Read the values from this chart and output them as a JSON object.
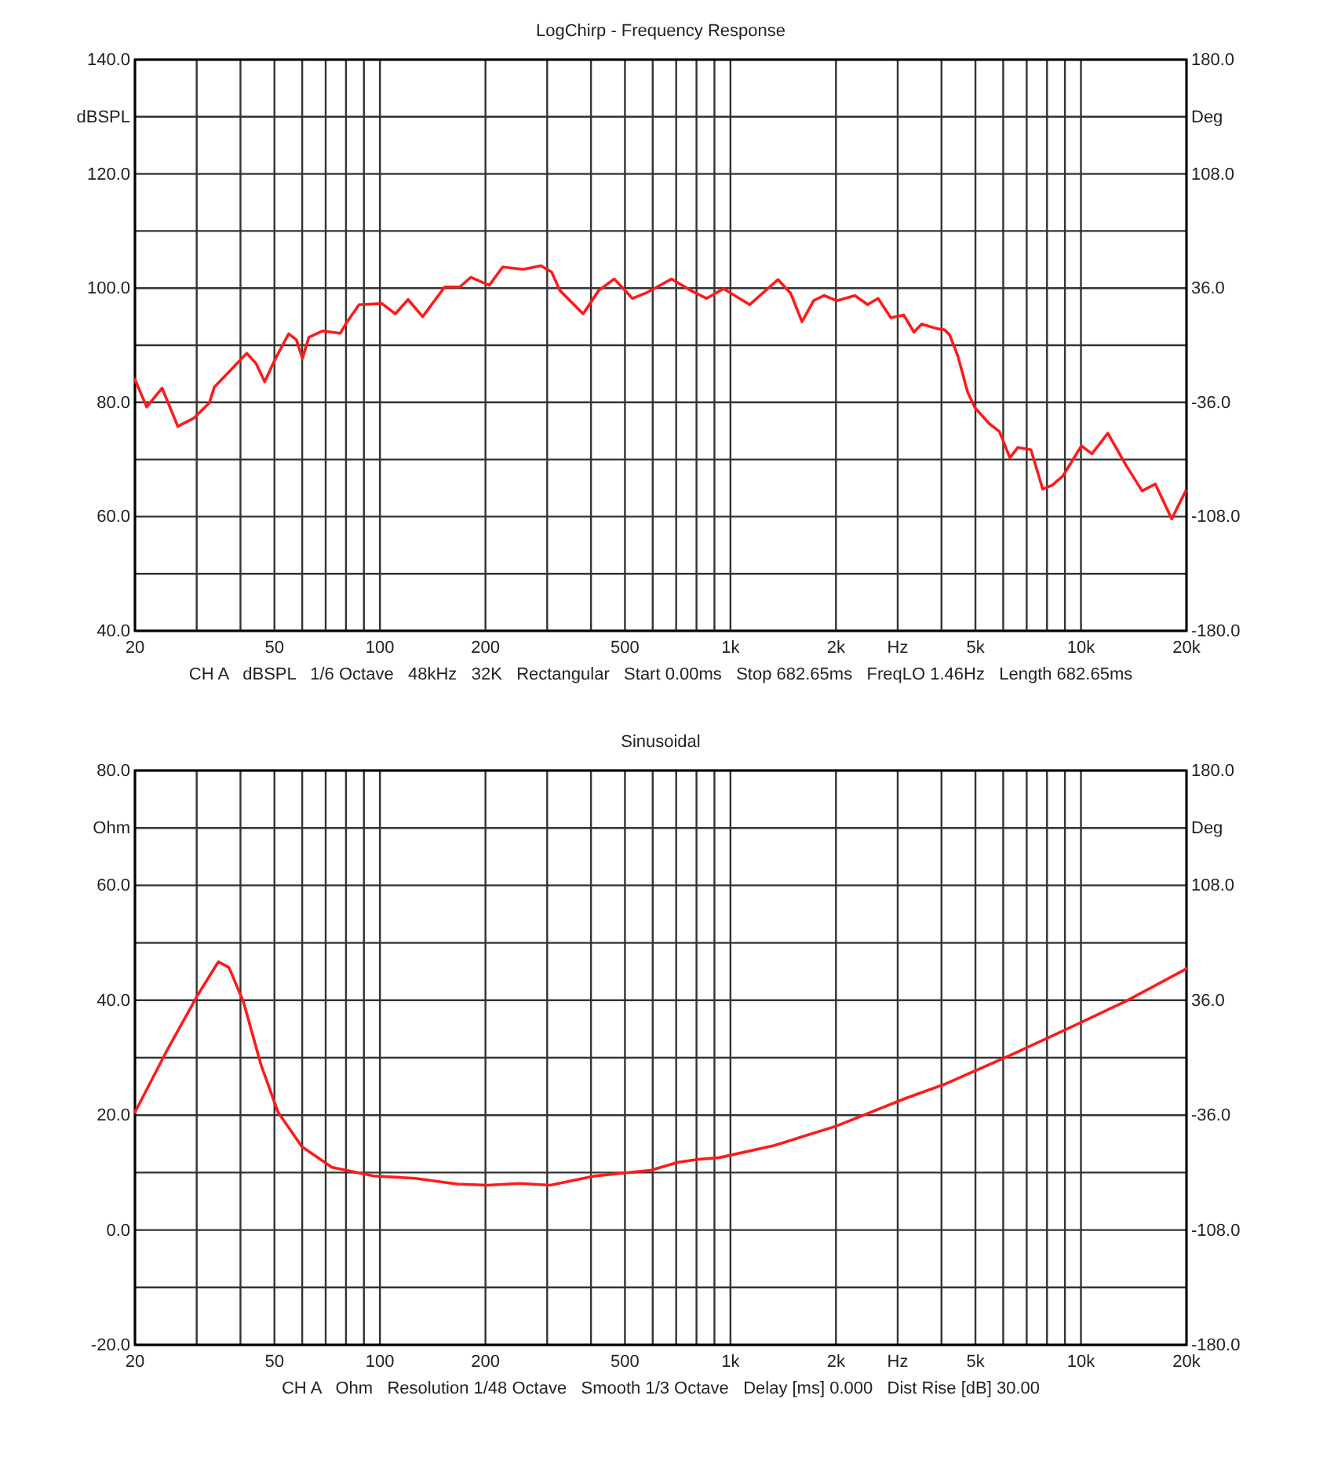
{
  "chart_data": [
    {
      "type": "line",
      "title": "LogChirp - Frequency Response",
      "log": "x",
      "grid": true,
      "x": [
        20,
        21.6,
        23.9,
        26.5,
        29.4,
        32.6,
        33.7,
        39.1,
        41.7,
        44.3,
        46.9,
        50,
        54.9,
        57.8,
        60.1,
        62.7,
        68.5,
        77.1,
        79.8,
        87.2,
        101.3,
        110.6,
        120.3,
        132.4,
        153,
        169,
        181.7,
        205,
        224,
        256,
        288,
        309,
        326,
        380,
        421,
        466,
        525,
        581,
        679,
        770,
        855,
        956,
        1134,
        1366,
        1485,
        1600,
        1727,
        1850,
        2011,
        2265,
        2463,
        2637,
        2868,
        3121,
        3338,
        3511,
        3883,
        4080,
        4220,
        4450,
        4750,
        4990,
        5470,
        5850,
        6270,
        6600,
        7200,
        7780,
        8280,
        8880,
        10030,
        10750,
        11930,
        13470,
        14950,
        16300,
        18150,
        19900
      ],
      "series": [
        {
          "color": "#ff1a1a",
          "values": [
            84.0,
            79.2,
            82.5,
            75.8,
            77.2,
            79.9,
            82.7,
            86.8,
            88.6,
            86.8,
            83.6,
            87.3,
            92.0,
            90.9,
            87.7,
            91.4,
            92.5,
            92.1,
            93.7,
            97.1,
            97.3,
            95.5,
            98.0,
            95.0,
            100.2,
            100.2,
            101.9,
            100.5,
            103.7,
            103.3,
            103.9,
            102.8,
            99.6,
            95.5,
            99.6,
            101.6,
            98.2,
            99.3,
            101.6,
            99.6,
            98.2,
            99.9,
            97.1,
            101.5,
            99.1,
            94.1,
            97.8,
            98.7,
            97.8,
            98.7,
            97.1,
            98.2,
            94.8,
            95.3,
            92.3,
            93.7,
            92.9,
            92.7,
            91.8,
            88.2,
            81.8,
            79.0,
            76.3,
            74.9,
            70.3,
            72.1,
            71.7,
            64.8,
            65.5,
            67.1,
            72.4,
            71.0,
            74.6,
            68.9,
            64.5,
            65.7,
            59.6,
            64.5
          ]
        }
      ],
      "xlim": [
        20,
        20000
      ],
      "xticks": [
        {
          "value": 20,
          "label": "20"
        },
        {
          "value": 30,
          "label": null
        },
        {
          "value": 40,
          "label": null
        },
        {
          "value": 50,
          "label": "50"
        },
        {
          "value": 60,
          "label": null
        },
        {
          "value": 70,
          "label": null
        },
        {
          "value": 80,
          "label": null
        },
        {
          "value": 90,
          "label": null
        },
        {
          "value": 100,
          "label": "100"
        },
        {
          "value": 200,
          "label": "200"
        },
        {
          "value": 300,
          "label": null
        },
        {
          "value": 400,
          "label": null
        },
        {
          "value": 500,
          "label": "500"
        },
        {
          "value": 600,
          "label": null
        },
        {
          "value": 700,
          "label": null
        },
        {
          "value": 800,
          "label": null
        },
        {
          "value": 900,
          "label": null
        },
        {
          "value": 1000,
          "label": "1k"
        },
        {
          "value": 2000,
          "label": "2k"
        },
        {
          "value": 3000,
          "label": "Hz"
        },
        {
          "value": 4000,
          "label": null
        },
        {
          "value": 5000,
          "label": "5k"
        },
        {
          "value": 6000,
          "label": null
        },
        {
          "value": 7000,
          "label": null
        },
        {
          "value": 8000,
          "label": null
        },
        {
          "value": 9000,
          "label": null
        },
        {
          "value": 10000,
          "label": "10k"
        },
        {
          "value": 20000,
          "label": "20k"
        }
      ],
      "ylim": [
        40,
        140
      ],
      "yticks": [
        {
          "value": 40,
          "label": "40.0"
        },
        {
          "value": 50,
          "label": null
        },
        {
          "value": 60,
          "label": "60.0"
        },
        {
          "value": 70,
          "label": null
        },
        {
          "value": 80,
          "label": "80.0"
        },
        {
          "value": 90,
          "label": null
        },
        {
          "value": 100,
          "label": "100.0"
        },
        {
          "value": 110,
          "label": null
        },
        {
          "value": 120,
          "label": "120.0"
        },
        {
          "value": 130,
          "label": "dBSPL"
        },
        {
          "value": 140,
          "label": "140.0"
        }
      ],
      "y2lim": [
        -180,
        180
      ],
      "y2ticks": [
        {
          "value": -180,
          "label": "-180.0"
        },
        {
          "value": -108,
          "label": "-108.0"
        },
        {
          "value": -36,
          "label": "-36.0"
        },
        {
          "value": 36,
          "label": "36.0"
        },
        {
          "value": 108,
          "label": "108.0"
        },
        {
          "value": 144,
          "label": "Deg"
        },
        {
          "value": 180,
          "label": "180.0"
        }
      ],
      "annotations": [
        "CH A   dBSPL   1/6 Octave   48kHz   32K   Rectangular   Start 0.00ms   Stop 682.65ms   FreqLO 1.46Hz   Length 682.65ms"
      ]
    },
    {
      "type": "line",
      "title": "Sinusoidal",
      "log": "x",
      "grid": true,
      "x": [
        20,
        24.7,
        30.2,
        34.6,
        37.1,
        40.8,
        45.7,
        51.2,
        59.9,
        73,
        96,
        126,
        166,
        203,
        250,
        306,
        410,
        592,
        709,
        812,
        930,
        1330,
        2005,
        3150,
        4130,
        6270,
        9440,
        13590,
        20000
      ],
      "series": [
        {
          "color": "#ff1a1a",
          "values": [
            20.5,
            31.3,
            40.9,
            46.7,
            45.7,
            39.7,
            28.9,
            20.5,
            14.5,
            10.9,
            9.4,
            9.0,
            8.0,
            7.8,
            8.1,
            7.8,
            9.4,
            10.4,
            11.8,
            12.3,
            12.6,
            14.7,
            18.1,
            22.9,
            25.5,
            30.4,
            35.4,
            40.0,
            45.5
          ]
        }
      ],
      "xlim": [
        20,
        20000
      ],
      "xticks": [
        {
          "value": 20,
          "label": "20"
        },
        {
          "value": 30,
          "label": null
        },
        {
          "value": 40,
          "label": null
        },
        {
          "value": 50,
          "label": "50"
        },
        {
          "value": 60,
          "label": null
        },
        {
          "value": 70,
          "label": null
        },
        {
          "value": 80,
          "label": null
        },
        {
          "value": 90,
          "label": null
        },
        {
          "value": 100,
          "label": "100"
        },
        {
          "value": 200,
          "label": "200"
        },
        {
          "value": 300,
          "label": null
        },
        {
          "value": 400,
          "label": null
        },
        {
          "value": 500,
          "label": "500"
        },
        {
          "value": 600,
          "label": null
        },
        {
          "value": 700,
          "label": null
        },
        {
          "value": 800,
          "label": null
        },
        {
          "value": 900,
          "label": null
        },
        {
          "value": 1000,
          "label": "1k"
        },
        {
          "value": 2000,
          "label": "2k"
        },
        {
          "value": 3000,
          "label": "Hz"
        },
        {
          "value": 4000,
          "label": null
        },
        {
          "value": 5000,
          "label": "5k"
        },
        {
          "value": 6000,
          "label": null
        },
        {
          "value": 7000,
          "label": null
        },
        {
          "value": 8000,
          "label": null
        },
        {
          "value": 9000,
          "label": null
        },
        {
          "value": 10000,
          "label": "10k"
        },
        {
          "value": 20000,
          "label": "20k"
        }
      ],
      "ylim": [
        -20,
        80
      ],
      "yticks": [
        {
          "value": -20,
          "label": "-20.0"
        },
        {
          "value": -10,
          "label": null
        },
        {
          "value": 0,
          "label": "0.0"
        },
        {
          "value": 10,
          "label": null
        },
        {
          "value": 20,
          "label": "20.0"
        },
        {
          "value": 30,
          "label": null
        },
        {
          "value": 40,
          "label": "40.0"
        },
        {
          "value": 50,
          "label": null
        },
        {
          "value": 60,
          "label": "60.0"
        },
        {
          "value": 70,
          "label": "Ohm"
        },
        {
          "value": 80,
          "label": "80.0"
        }
      ],
      "y2lim": [
        -180,
        180
      ],
      "y2ticks": [
        {
          "value": -180,
          "label": "-180.0"
        },
        {
          "value": -108,
          "label": "-108.0"
        },
        {
          "value": -36,
          "label": "-36.0"
        },
        {
          "value": 36,
          "label": "36.0"
        },
        {
          "value": 108,
          "label": "108.0"
        },
        {
          "value": 144,
          "label": "Deg"
        },
        {
          "value": 180,
          "label": "180.0"
        }
      ],
      "annotations": [
        "CH A   Ohm   Resolution 1/48 Octave   Smooth 1/3 Octave   Delay [ms] 0.000   Dist Rise [dB] 30.00"
      ]
    }
  ]
}
